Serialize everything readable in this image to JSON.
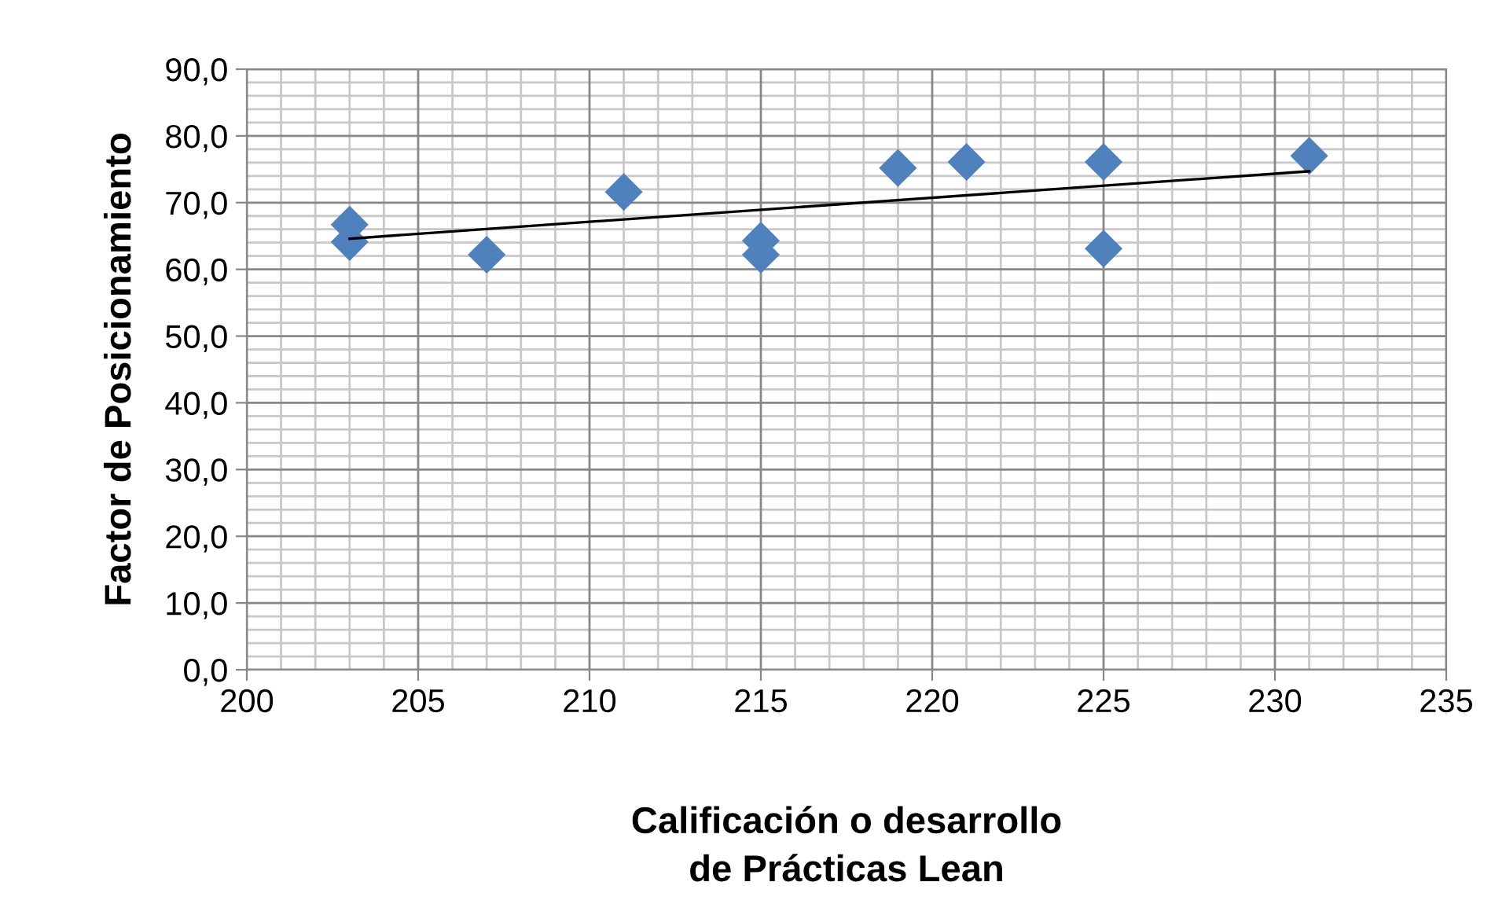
{
  "chart_data": {
    "type": "scatter",
    "xlabel": "Calificación o desarrollo\nde Prácticas Lean",
    "ylabel": "Factor de Posicionamiento",
    "xlim": [
      200,
      235
    ],
    "xticks": [
      200,
      205,
      210,
      215,
      220,
      225,
      230,
      235
    ],
    "ylim": [
      0,
      90
    ],
    "yticks": [
      {
        "value": 0,
        "label": "0,0"
      },
      {
        "value": 10,
        "label": "10,0"
      },
      {
        "value": 20,
        "label": "20,0"
      },
      {
        "value": 30,
        "label": "30,0"
      },
      {
        "value": 40,
        "label": "40,0"
      },
      {
        "value": 50,
        "label": "50,0"
      },
      {
        "value": 60,
        "label": "60,0"
      },
      {
        "value": 70,
        "label": "70,0"
      },
      {
        "value": 80,
        "label": "80,0"
      },
      {
        "value": 90,
        "label": "90,0"
      }
    ],
    "grid": true,
    "legend": false,
    "series": [
      {
        "color": "#4f81bd",
        "marker": "diamond",
        "x": [
          203,
          203,
          207,
          211,
          215,
          215,
          219,
          221,
          225,
          225,
          231
        ],
        "values": [
          66.7,
          64.1,
          62.2,
          71.6,
          64.3,
          62.2,
          75.2,
          76.1,
          76.1,
          63.1,
          77.0
        ]
      },
      {
        "type": "line",
        "color": "#000000",
        "marker": "none",
        "line_style": "solid",
        "x": [
          203,
          231
        ],
        "values": [
          64.6,
          74.7
        ]
      }
    ]
  }
}
